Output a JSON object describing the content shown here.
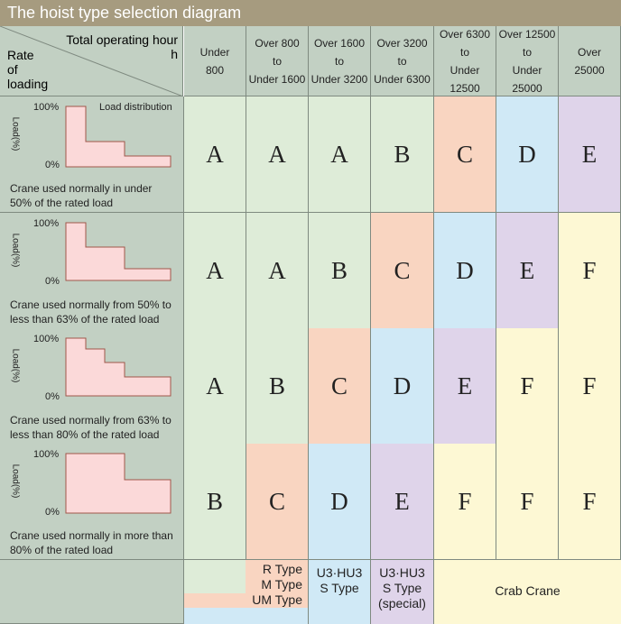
{
  "title": "The hoist type selection diagram",
  "corner": {
    "top_label_line1": "Total operating hour",
    "top_label_line2": "h",
    "left_label_line1": "Rate",
    "left_label_line2": "of",
    "left_label_line3": "loading"
  },
  "columns": [
    {
      "l1": "Under",
      "l2": "800",
      "l3": ""
    },
    {
      "l1": "Over 800",
      "l2": "to",
      "l3": "Under 1600"
    },
    {
      "l1": "Over 1600",
      "l2": "to",
      "l3": "Under 3200"
    },
    {
      "l1": "Over 3200",
      "l2": "to",
      "l3": "Under 6300"
    },
    {
      "l1": "Over 6300",
      "l2": "to",
      "l3": "Under 12500"
    },
    {
      "l1": "Over 12500",
      "l2": "to",
      "l3": "Under 25000"
    },
    {
      "l1": "Over",
      "l2": "25000",
      "l3": ""
    }
  ],
  "rows": [
    {
      "label_100": "100%",
      "label_0": "0%",
      "dist_label": "Load distribution",
      "axis": "Load(%)",
      "desc1": "Crane used normally in under",
      "desc2": "50% of the rated load",
      "grades": [
        "A",
        "A",
        "A",
        "B",
        "C",
        "D",
        "E"
      ]
    },
    {
      "label_100": "100%",
      "label_0": "0%",
      "dist_label": "",
      "axis": "Load(%)",
      "desc1": "Crane used normally from 50% to",
      "desc2": "less than 63% of the rated load",
      "grades": [
        "A",
        "A",
        "B",
        "C",
        "D",
        "E",
        "F"
      ]
    },
    {
      "label_100": "100%",
      "label_0": "0%",
      "dist_label": "",
      "axis": "Load(%)",
      "desc1": "Crane used normally from 63% to",
      "desc2": "less than 80% of the rated load",
      "grades": [
        "A",
        "B",
        "C",
        "D",
        "E",
        "F",
        "F"
      ]
    },
    {
      "label_100": "100%",
      "label_0": "0%",
      "dist_label": "",
      "axis": "Load(%)",
      "desc1": "Crane used normally in more than",
      "desc2": "80% of the rated load",
      "grades": [
        "B",
        "C",
        "D",
        "E",
        "F",
        "F",
        "F"
      ]
    }
  ],
  "grade_colors": {
    "A": "#deecd8",
    "B": "#deecd8",
    "C": "#f9d5c1",
    "D": "#d0e9f6",
    "E": "#dfd4ea",
    "F": "#fdf8d4"
  },
  "bottom": {
    "type1_l1": "R  Type",
    "type1_l2": "M  Type",
    "type1_l3": "UM Type",
    "type2_l1": "U3·HU3",
    "type2_l2": "S Type",
    "type3_l1": "U3·HU3",
    "type3_l2": "S Type",
    "type3_l3": "(special)",
    "type4": "Crab Crane"
  }
}
